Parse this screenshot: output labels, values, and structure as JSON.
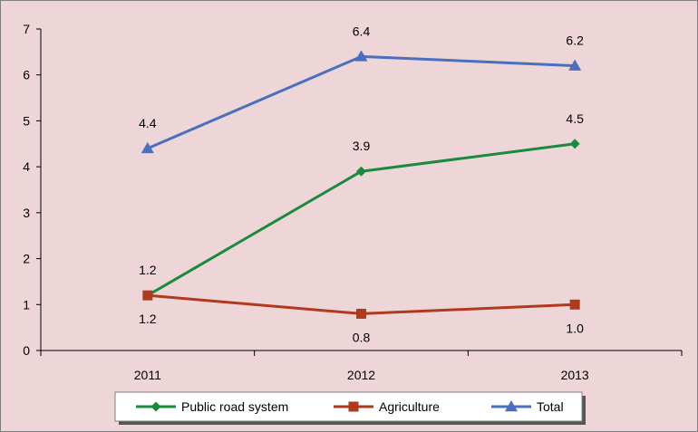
{
  "colors": {
    "background": "#eed5d7",
    "border": "#7f7f7f",
    "axis": "#000000",
    "legend_background": "#ffffff",
    "legend_shadow": "#555555"
  },
  "chart_data": {
    "type": "line",
    "title": "",
    "xlabel": "",
    "ylabel": "",
    "categories": [
      "2011",
      "2012",
      "2013"
    ],
    "ylim": [
      0,
      7
    ],
    "yticks": [
      "0",
      "1",
      "2",
      "3",
      "4",
      "5",
      "6",
      "7"
    ],
    "grid": false,
    "legend_position": "bottom",
    "series": [
      {
        "name": "Public road system",
        "values": [
          1.2,
          3.9,
          4.5
        ],
        "labels": [
          "1.2",
          "3.9",
          "4.5"
        ],
        "label_side": [
          "above",
          "above",
          "above"
        ],
        "color": "#1a8a3c",
        "marker": "diamond"
      },
      {
        "name": "Agriculture",
        "values": [
          1.2,
          0.8,
          1.0
        ],
        "labels": [
          "1.2",
          "0.8",
          "1.0"
        ],
        "label_side": [
          "below",
          "below",
          "below"
        ],
        "color": "#b03a1e",
        "marker": "square"
      },
      {
        "name": "Total",
        "values": [
          4.4,
          6.4,
          6.2
        ],
        "labels": [
          "4.4",
          "6.4",
          "6.2"
        ],
        "label_side": [
          "above",
          "above",
          "above"
        ],
        "color": "#4a6fbf",
        "marker": "triangle"
      }
    ]
  }
}
